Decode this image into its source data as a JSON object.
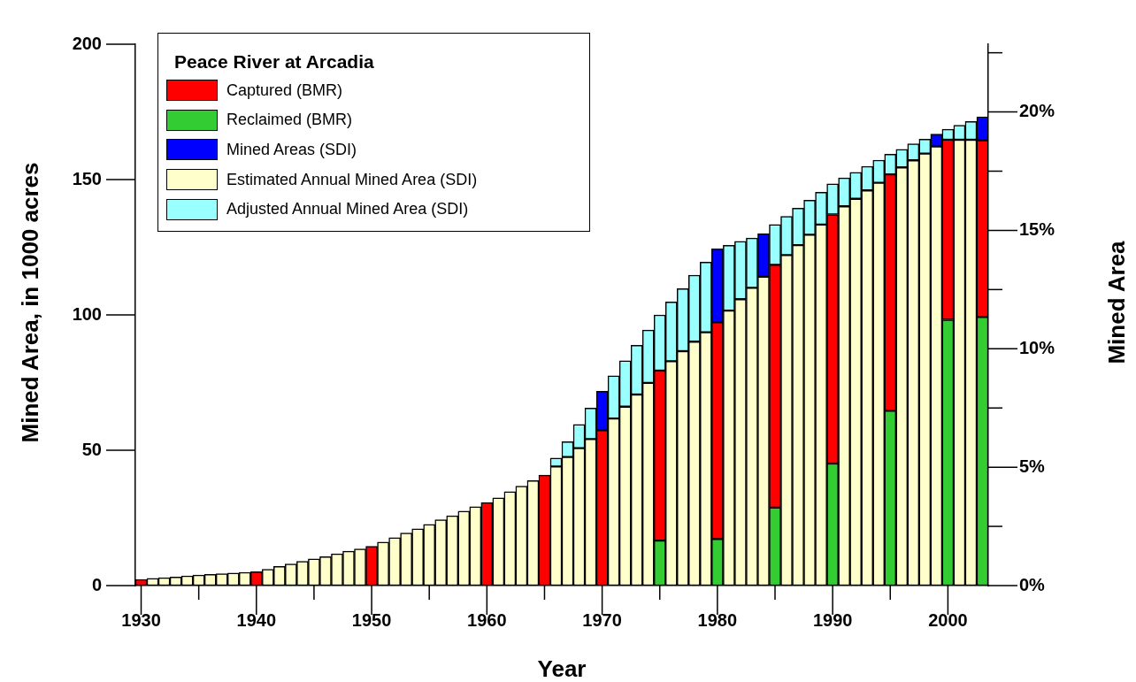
{
  "chart_data": {
    "type": "bar",
    "stacked": true,
    "xlabel": "Year",
    "ylabel": "Mined Area, in 1000 acres",
    "y2label": "Mined Area",
    "legend_title": "Peace River at Arcadia",
    "legend": "top left",
    "grid": false,
    "x": [
      1930,
      1931,
      1932,
      1933,
      1934,
      1935,
      1936,
      1937,
      1938,
      1939,
      1940,
      1941,
      1942,
      1943,
      1944,
      1945,
      1946,
      1947,
      1948,
      1949,
      1950,
      1951,
      1952,
      1953,
      1954,
      1955,
      1956,
      1957,
      1958,
      1959,
      1960,
      1961,
      1962,
      1963,
      1964,
      1965,
      1966,
      1967,
      1968,
      1969,
      1970,
      1971,
      1972,
      1973,
      1974,
      1975,
      1976,
      1977,
      1978,
      1979,
      1980,
      1981,
      1982,
      1983,
      1984,
      1985,
      1986,
      1987,
      1988,
      1989,
      1990,
      1991,
      1992,
      1993,
      1994,
      1995,
      1996,
      1997,
      1998,
      1999,
      2000,
      2001,
      2002,
      2003
    ],
    "xlim": [
      1929.5,
      2003.5
    ],
    "xticks": [
      1930,
      {
        "value": 1935,
        "label": null
      },
      1940,
      {
        "value": 1945,
        "label": null
      },
      1950,
      {
        "value": 1955,
        "label": null
      },
      1960,
      {
        "value": 1965,
        "label": null
      },
      1970,
      {
        "value": 1975,
        "label": null
      },
      1980,
      {
        "value": 1985,
        "label": null
      },
      1990,
      {
        "value": 1995,
        "label": null
      },
      2000
    ],
    "ylim": [
      0,
      200
    ],
    "yticks": [
      0,
      50,
      100,
      150,
      200
    ],
    "y2lim": [
      0,
      22.86
    ],
    "y2ticks": [
      {
        "value": 0,
        "label": "0%"
      },
      {
        "value": 2.5,
        "label": null
      },
      {
        "value": 5,
        "label": "5%"
      },
      {
        "value": 7.5,
        "label": null
      },
      {
        "value": 10,
        "label": "10%"
      },
      {
        "value": 12.5,
        "label": null
      },
      {
        "value": 15,
        "label": "15%"
      },
      {
        "value": 17.5,
        "label": null
      },
      {
        "value": 20,
        "label": "20%"
      },
      {
        "value": 22.5,
        "label": null
      }
    ],
    "series": [
      {
        "name": "Reclaimed (BMR)",
        "color": "#33cc33",
        "values": [
          null,
          null,
          null,
          null,
          null,
          null,
          null,
          null,
          null,
          null,
          null,
          null,
          null,
          null,
          null,
          null,
          null,
          null,
          null,
          null,
          null,
          null,
          null,
          null,
          null,
          null,
          null,
          null,
          null,
          null,
          null,
          null,
          null,
          null,
          null,
          null,
          null,
          null,
          null,
          null,
          null,
          null,
          null,
          null,
          null,
          16.6,
          null,
          null,
          null,
          null,
          17.2,
          null,
          null,
          null,
          null,
          28.8,
          null,
          null,
          null,
          null,
          45.1,
          null,
          null,
          null,
          null,
          64.6,
          null,
          null,
          null,
          null,
          98.2,
          null,
          null,
          99.2
        ]
      },
      {
        "name": "Captured (BMR)",
        "color": "#ff0000",
        "values": [
          2.3,
          null,
          null,
          null,
          null,
          null,
          null,
          null,
          null,
          null,
          5.1,
          null,
          null,
          null,
          null,
          null,
          null,
          null,
          null,
          null,
          14.5,
          null,
          null,
          null,
          null,
          null,
          null,
          null,
          null,
          null,
          30.7,
          null,
          null,
          null,
          null,
          40.8,
          null,
          null,
          null,
          null,
          57.4,
          null,
          null,
          null,
          null,
          62.8,
          null,
          null,
          null,
          null,
          80.1,
          null,
          null,
          null,
          null,
          89.7,
          null,
          null,
          null,
          null,
          92,
          null,
          null,
          null,
          null,
          87.3,
          null,
          null,
          null,
          null,
          66.5,
          null,
          null,
          65.3
        ]
      },
      {
        "name": "Estimated Annual Mined Area (SDI)",
        "color": "#ffffcc",
        "values": [
          null,
          2.7,
          2.9,
          3.2,
          3.6,
          3.9,
          4.1,
          4.4,
          4.6,
          4.9,
          null,
          6.0,
          7.1,
          8.0,
          9.0,
          9.9,
          10.7,
          11.7,
          12.7,
          13.5,
          null,
          16.1,
          17.7,
          19.4,
          21.0,
          22.6,
          24.3,
          25.8,
          27.5,
          29.1,
          null,
          32.4,
          34.7,
          36.7,
          38.8,
          null,
          44.0,
          47.5,
          50.8,
          54.1,
          null,
          61.7,
          66.1,
          70.6,
          74.9,
          null,
          82.9,
          86.6,
          90.1,
          93.6,
          null,
          101.6,
          105.8,
          110,
          114.1,
          null,
          122.1,
          125.8,
          129.6,
          133.4,
          null,
          140.1,
          142.9,
          146,
          148.8,
          null,
          154.5,
          157.1,
          159.6,
          162.2,
          null,
          164.7,
          164.7,
          null
        ]
      },
      {
        "name": "Adjusted Annual Mined Area (SDI)",
        "color": "#99ffff",
        "values": [
          null,
          null,
          null,
          null,
          null,
          null,
          null,
          null,
          null,
          null,
          null,
          null,
          null,
          null,
          null,
          null,
          null,
          null,
          null,
          null,
          null,
          null,
          null,
          null,
          null,
          null,
          null,
          null,
          null,
          null,
          null,
          null,
          null,
          null,
          null,
          null,
          3.1,
          5.7,
          8.7,
          11.5,
          null,
          15.8,
          17,
          18.2,
          19.5,
          20.6,
          21.9,
          23.1,
          24.6,
          25.9,
          null,
          24.1,
          21.4,
          18.4,
          null,
          14.9,
          14.3,
          13.6,
          12.8,
          11.9,
          11.3,
          10.5,
          9.8,
          8.9,
          8.4,
          7.5,
          6.7,
          6.1,
          5.3,
          null,
          3.9,
          5.4,
          6.8,
          null
        ]
      },
      {
        "name": "Mined Areas (SDI)",
        "color": "#0000ff",
        "values": [
          null,
          null,
          null,
          null,
          null,
          null,
          null,
          null,
          null,
          null,
          null,
          null,
          null,
          null,
          null,
          null,
          null,
          null,
          null,
          null,
          null,
          null,
          null,
          null,
          null,
          null,
          null,
          null,
          null,
          null,
          null,
          null,
          null,
          null,
          null,
          null,
          null,
          null,
          null,
          null,
          14.4,
          null,
          null,
          null,
          null,
          null,
          null,
          null,
          null,
          null,
          27.1,
          null,
          null,
          null,
          15.9,
          null,
          null,
          null,
          null,
          null,
          null,
          null,
          null,
          null,
          null,
          null,
          null,
          null,
          null,
          4.6,
          null,
          null,
          null,
          8.7
        ]
      }
    ]
  }
}
